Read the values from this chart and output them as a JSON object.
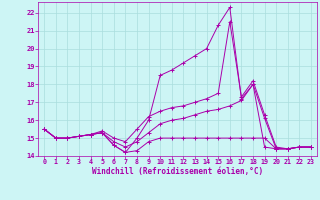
{
  "background_color": "#cdf5f5",
  "grid_color": "#aadddd",
  "line_color": "#aa00aa",
  "xlabel": "Windchill (Refroidissement éolien,°C)",
  "xlim": [
    -0.5,
    23.5
  ],
  "ylim": [
    14.0,
    22.6
  ],
  "yticks": [
    14,
    15,
    16,
    17,
    18,
    19,
    20,
    21,
    22
  ],
  "xticks": [
    0,
    1,
    2,
    3,
    4,
    5,
    6,
    7,
    8,
    9,
    10,
    11,
    12,
    13,
    14,
    15,
    16,
    17,
    18,
    19,
    20,
    21,
    22,
    23
  ],
  "xtick_labels": [
    "0",
    "1",
    "2",
    "3",
    "4",
    "5",
    "6",
    "7",
    "8",
    "9",
    "10",
    "11",
    "12",
    "13",
    "14",
    "15",
    "16",
    "17",
    "18",
    "19",
    "20",
    "21",
    "22",
    "23"
  ],
  "series": [
    {
      "x": [
        0,
        1,
        2,
        3,
        4,
        5,
        6,
        7,
        8,
        9,
        10,
        11,
        12,
        13,
        14,
        15,
        16,
        17,
        18,
        19,
        20,
        21,
        22,
        23
      ],
      "y": [
        15.5,
        15.0,
        15.0,
        15.1,
        15.2,
        15.3,
        14.6,
        14.2,
        14.3,
        14.8,
        15.0,
        15.0,
        15.0,
        15.0,
        15.0,
        15.0,
        15.0,
        15.0,
        15.0,
        15.0,
        14.4,
        14.4,
        14.5,
        14.5
      ]
    },
    {
      "x": [
        0,
        1,
        2,
        3,
        4,
        5,
        6,
        7,
        8,
        9,
        10,
        11,
        12,
        13,
        14,
        15,
        16,
        17,
        18,
        19,
        20,
        21,
        22,
        23
      ],
      "y": [
        15.5,
        15.0,
        15.0,
        15.1,
        15.2,
        15.3,
        14.8,
        14.5,
        14.8,
        15.3,
        15.8,
        16.0,
        16.1,
        16.3,
        16.5,
        16.6,
        16.8,
        17.1,
        18.0,
        16.1,
        14.4,
        14.4,
        14.5,
        14.5
      ]
    },
    {
      "x": [
        0,
        1,
        2,
        3,
        4,
        5,
        6,
        7,
        8,
        9,
        10,
        11,
        12,
        13,
        14,
        15,
        16,
        17,
        18,
        19,
        20,
        21,
        22,
        23
      ],
      "y": [
        15.5,
        15.0,
        15.0,
        15.1,
        15.2,
        15.4,
        15.0,
        14.8,
        15.5,
        16.2,
        16.5,
        16.7,
        16.8,
        17.0,
        17.2,
        17.5,
        21.5,
        17.3,
        18.2,
        16.3,
        14.5,
        14.4,
        14.5,
        14.5
      ]
    },
    {
      "x": [
        0,
        1,
        2,
        3,
        4,
        5,
        6,
        7,
        8,
        9,
        10,
        11,
        12,
        13,
        14,
        15,
        16,
        17,
        18,
        19,
        20,
        21,
        22,
        23
      ],
      "y": [
        15.5,
        15.0,
        15.0,
        15.1,
        15.2,
        15.3,
        14.6,
        14.2,
        15.0,
        16.0,
        18.5,
        18.8,
        19.2,
        19.6,
        20.0,
        21.3,
        22.3,
        17.2,
        18.0,
        14.5,
        14.4,
        14.4,
        14.5,
        14.5
      ]
    }
  ]
}
